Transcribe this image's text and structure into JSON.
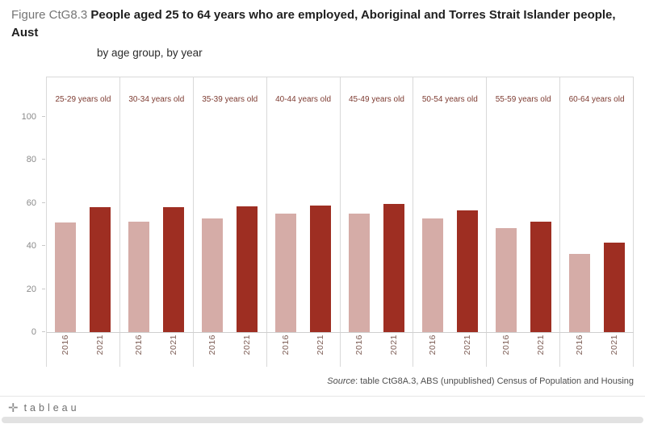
{
  "header": {
    "title_prefix": "Figure CtG8.3 ",
    "title_bold": "People aged 25 to 64 years who are employed, Aboriginal and Torres Strait Islander people, Aust",
    "subtitle": "by age group, by year"
  },
  "chart_data": {
    "type": "bar",
    "title": "People aged 25 to 64 years who are employed, Aboriginal and Torres Strait Islander people, Aust — by age group, by year",
    "panels": [
      "25-29 years old",
      "30-34 years old",
      "35-39 years old",
      "40-44 years old",
      "45-49 years old",
      "50-54 years old",
      "55-59 years old",
      "60-64 years old"
    ],
    "categories": [
      "2016",
      "2021"
    ],
    "series": [
      {
        "name": "2016",
        "color": "#d5aca7",
        "values": [
          51,
          51.5,
          53,
          55,
          55,
          53,
          48.5,
          36.5
        ]
      },
      {
        "name": "2021",
        "color": "#9e2e22",
        "values": [
          58,
          58,
          58.5,
          59,
          59.5,
          56.5,
          51.5,
          41.5
        ]
      }
    ],
    "ylim": [
      0,
      100
    ],
    "yticks": [
      0,
      20,
      40,
      60,
      80,
      100
    ],
    "grid": false,
    "legend": "none"
  },
  "source": {
    "italic": "Source",
    "text": ": table CtG8A.3, ABS (unpublished) Census of Population and Housing"
  },
  "footer": {
    "brand": "tableau",
    "mark": "✛"
  }
}
